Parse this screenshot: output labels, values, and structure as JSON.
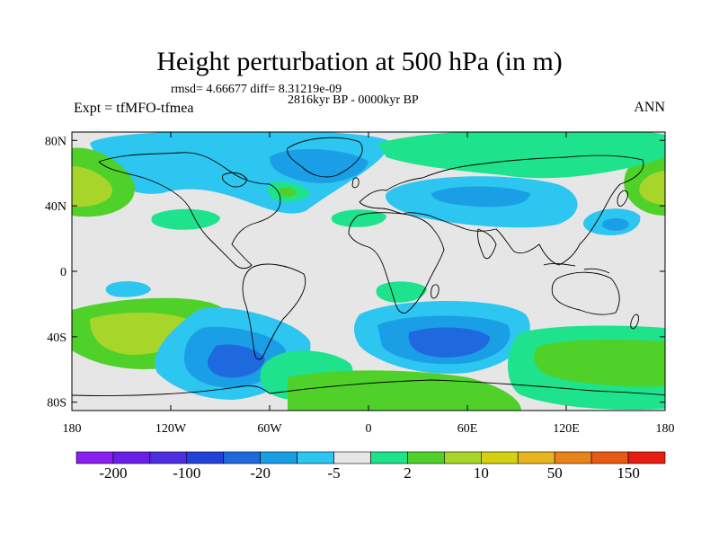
{
  "title": "Height perturbation at 500 hPa (in m)",
  "stats_line": "rmsd= 4.66677 diff= 8.31219e-09",
  "period_line": "2816kyr BP - 0000kyr BP",
  "left_label": "Expt = tfMFO-tfmea",
  "right_label": "ANN",
  "map": {
    "projection": "cylindrical equidistant",
    "lon_ticks": [
      "180",
      "120W",
      "60W",
      "0",
      "60E",
      "120E",
      "180"
    ],
    "lat_ticks": [
      "80N",
      "40N",
      "0",
      "40S",
      "80S"
    ],
    "colors": {
      "neutral": "#e6e6e6",
      "light_blue": "#2cc6f0",
      "mid_blue": "#1a9fe6",
      "dark_blue": "#1f69df",
      "teal_green": "#1ee38c",
      "green": "#4fd12a",
      "yellow_green": "#a8d52a"
    }
  },
  "colorbar": {
    "colors": [
      "#8b1ef0",
      "#6a1ee8",
      "#4e2de0",
      "#2241d6",
      "#1f69df",
      "#1a9fe6",
      "#2cc6f0",
      "#e6e6e6",
      "#1ee38c",
      "#4fd12a",
      "#a8d52a",
      "#d4d012",
      "#e8b51e",
      "#e8821a",
      "#e85a14",
      "#e81c10"
    ],
    "labels": [
      "-200",
      "-100",
      "-20",
      "-5",
      "2",
      "10",
      "50",
      "150"
    ]
  }
}
